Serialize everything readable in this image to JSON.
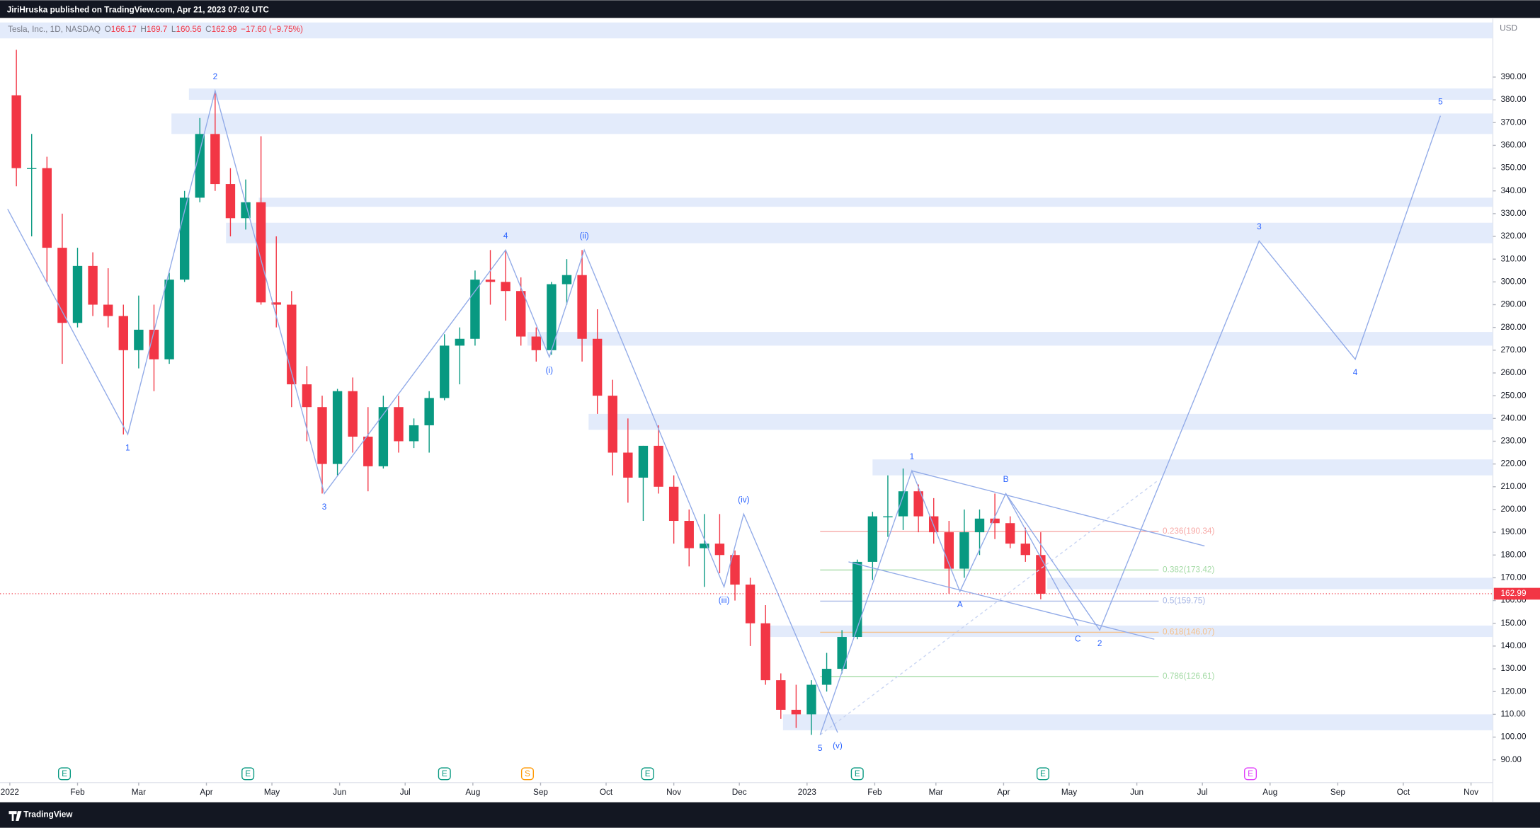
{
  "header": {
    "publisher": "JiriHruska published on TradingView.com, Apr 21, 2023 07:02 UTC"
  },
  "footer": {
    "brand": "TradingView"
  },
  "chart_data": {
    "type": "candlestick",
    "title": "Tesla, Inc., 1D, NASDAQ",
    "ohlc_legend": [
      {
        "key": "O",
        "value": 166.17
      },
      {
        "key": "H",
        "value": 169.7
      },
      {
        "key": "L",
        "value": 160.56
      },
      {
        "key": "C",
        "value": 162.99
      }
    ],
    "change": "−17.60 (−9.75%)",
    "currency": "USD",
    "up_color": "#089981",
    "down_color": "#f23645",
    "x": [
      3,
      10,
      17,
      24,
      31,
      38,
      45,
      52,
      59,
      66,
      73,
      80,
      87,
      94,
      101,
      108,
      115,
      122,
      129,
      136,
      143,
      150,
      157,
      164,
      171,
      178,
      185,
      192,
      199,
      206,
      213,
      220,
      227,
      234,
      241,
      248,
      255,
      262,
      269,
      276,
      283,
      290,
      297,
      304,
      311,
      318,
      325,
      332,
      339,
      346,
      353,
      360,
      367,
      374,
      381,
      388,
      395,
      402,
      409,
      416,
      423,
      430,
      437,
      444,
      451,
      458,
      465,
      472
    ],
    "open": [
      382,
      350,
      350,
      315,
      282,
      307,
      290,
      285,
      270,
      279,
      266,
      301,
      337,
      365,
      343,
      328,
      335,
      291,
      290,
      255,
      245,
      220,
      252,
      232,
      219,
      245,
      230,
      237,
      249,
      272,
      275,
      301,
      300,
      296,
      276,
      270,
      299,
      303,
      275,
      250,
      225,
      214,
      228,
      210,
      195,
      183,
      185,
      180,
      167,
      150,
      125,
      112,
      110,
      123,
      130,
      144,
      177,
      197,
      197,
      208,
      197,
      190,
      174,
      190,
      196,
      194,
      185,
      180
    ],
    "high": [
      402,
      365,
      355,
      330,
      315,
      313,
      306,
      290,
      294,
      290,
      304,
      340,
      372,
      384,
      350,
      345,
      364,
      320,
      296,
      263,
      250,
      253,
      258,
      245,
      250,
      250,
      240,
      252,
      277,
      280,
      305,
      314,
      314,
      302,
      280,
      300,
      310,
      314,
      288,
      257,
      240,
      228,
      237,
      215,
      200,
      198,
      198,
      182,
      170,
      158,
      128,
      123,
      125,
      137,
      147,
      178,
      199,
      215,
      218,
      211,
      205,
      195,
      200,
      200,
      207,
      197,
      192,
      190
    ],
    "low": [
      342,
      320,
      300,
      264,
      280,
      285,
      280,
      233,
      262,
      252,
      264,
      300,
      335,
      340,
      320,
      323,
      290,
      280,
      245,
      230,
      207,
      215,
      225,
      208,
      218,
      225,
      227,
      225,
      248,
      255,
      272,
      290,
      283,
      272,
      265,
      268,
      290,
      265,
      242,
      215,
      203,
      195,
      207,
      185,
      175,
      166,
      172,
      160,
      140,
      123,
      108,
      104,
      101,
      120,
      128,
      143,
      169,
      188,
      191,
      190,
      185,
      163,
      170,
      180,
      187,
      183,
      177,
      160.56
    ],
    "close": [
      350,
      350,
      315,
      282,
      307,
      290,
      285,
      270,
      279,
      266,
      301,
      337,
      365,
      343,
      328,
      335,
      291,
      290,
      255,
      245,
      220,
      252,
      232,
      219,
      245,
      230,
      237,
      249,
      272,
      275,
      301,
      300,
      296,
      276,
      270,
      299,
      303,
      275,
      250,
      225,
      214,
      228,
      210,
      195,
      183,
      185,
      180,
      167,
      150,
      125,
      112,
      110,
      123,
      130,
      144,
      177,
      197,
      197,
      208,
      197,
      190,
      174,
      190,
      196,
      194,
      185,
      180,
      162.99
    ],
    "xlim": [
      -4.5,
      679
    ],
    "xticks": [
      {
        "value": 0,
        "label": "2022"
      },
      {
        "value": 31,
        "label": "Feb"
      },
      {
        "value": 59,
        "label": "Mar"
      },
      {
        "value": 90,
        "label": "Apr"
      },
      {
        "value": 120,
        "label": "May"
      },
      {
        "value": 151,
        "label": "Jun"
      },
      {
        "value": 181,
        "label": "Jul"
      },
      {
        "value": 212,
        "label": "Aug"
      },
      {
        "value": 243,
        "label": "Sep"
      },
      {
        "value": 273,
        "label": "Oct"
      },
      {
        "value": 304,
        "label": "Nov"
      },
      {
        "value": 334,
        "label": "Dec"
      },
      {
        "value": 365,
        "label": "2023"
      },
      {
        "value": 396,
        "label": "Feb"
      },
      {
        "value": 424,
        "label": "Mar"
      },
      {
        "value": 455,
        "label": "Apr"
      },
      {
        "value": 485,
        "label": "May"
      },
      {
        "value": 516,
        "label": "Jun"
      },
      {
        "value": 546,
        "label": "Jul"
      },
      {
        "value": 577,
        "label": "Aug"
      },
      {
        "value": 608,
        "label": "Sep"
      },
      {
        "value": 638,
        "label": "Oct"
      },
      {
        "value": 669,
        "label": "Nov"
      }
    ],
    "ylim": [
      80,
      416
    ],
    "yticks": [
      {
        "value": 390,
        "label": "390.00"
      },
      {
        "value": 380,
        "label": "380.00"
      },
      {
        "value": 370,
        "label": "370.00"
      },
      {
        "value": 360,
        "label": "360.00"
      },
      {
        "value": 350,
        "label": "350.00"
      },
      {
        "value": 340,
        "label": "340.00"
      },
      {
        "value": 330,
        "label": "330.00"
      },
      {
        "value": 320,
        "label": "320.00"
      },
      {
        "value": 310,
        "label": "310.00"
      },
      {
        "value": 300,
        "label": "300.00"
      },
      {
        "value": 290,
        "label": "290.00"
      },
      {
        "value": 280,
        "label": "280.00"
      },
      {
        "value": 270,
        "label": "270.00"
      },
      {
        "value": 260,
        "label": "260.00"
      },
      {
        "value": 250,
        "label": "250.00"
      },
      {
        "value": 240,
        "label": "240.00"
      },
      {
        "value": 230,
        "label": "230.00"
      },
      {
        "value": 220,
        "label": "220.00"
      },
      {
        "value": 210,
        "label": "210.00"
      },
      {
        "value": 200,
        "label": "200.00"
      },
      {
        "value": 190,
        "label": "190.00"
      },
      {
        "value": 180,
        "label": "180.00"
      },
      {
        "value": 170,
        "label": "170.00"
      },
      {
        "value": 160,
        "label": "160.00"
      },
      {
        "value": 150,
        "label": "150.00"
      },
      {
        "value": 140,
        "label": "140.00"
      },
      {
        "value": 130,
        "label": "130.00"
      },
      {
        "value": 120,
        "label": "120.00"
      },
      {
        "value": 110,
        "label": "110.00"
      },
      {
        "value": 100,
        "label": "100.00"
      },
      {
        "value": 90,
        "label": "90.00"
      }
    ],
    "last_price": 162.99,
    "zone_color": "#e3ebfb",
    "zones": [
      {
        "x": -4.5,
        "low": 407,
        "high": 414
      },
      {
        "x": 82,
        "low": 380,
        "high": 385
      },
      {
        "x": 74,
        "low": 365,
        "high": 374
      },
      {
        "x": 114,
        "low": 333,
        "high": 337
      },
      {
        "x": 99,
        "low": 317,
        "high": 326
      },
      {
        "x": 237,
        "low": 272,
        "high": 278
      },
      {
        "x": 265,
        "low": 235,
        "high": 242
      },
      {
        "x": 395,
        "low": 215,
        "high": 222
      },
      {
        "x": 475,
        "low": 165,
        "high": 170
      },
      {
        "x": 345,
        "low": 144,
        "high": 149
      },
      {
        "x": 354,
        "low": 103,
        "high": 110
      }
    ],
    "wave_color": "#92abe8",
    "label_color": "#2962ff",
    "waves": [
      {
        "points": [
          {
            "x": -1,
            "y": 332
          },
          {
            "x": 54,
            "y": 233,
            "label": "1"
          },
          {
            "x": 94,
            "y": 384,
            "label": "2"
          },
          {
            "x": 144,
            "y": 207,
            "label": "3"
          },
          {
            "x": 227,
            "y": 314,
            "label": "4"
          },
          {
            "x": 247,
            "y": 267,
            "label": "(i)"
          },
          {
            "x": 263,
            "y": 314,
            "label": "(ii)"
          },
          {
            "x": 327,
            "y": 166,
            "label": "(iii)"
          },
          {
            "x": 336,
            "y": 198,
            "label": "(iv)"
          },
          {
            "x": 379,
            "y": 102,
            "label": "(v)"
          }
        ]
      },
      {
        "points": [
          {
            "x": 371,
            "y": 101,
            "label": "5"
          },
          {
            "x": 413,
            "y": 217,
            "label": "1"
          },
          {
            "x": 435,
            "y": 164,
            "label": "A"
          },
          {
            "x": 456,
            "y": 207,
            "label": "B"
          },
          {
            "x": 489,
            "y": 149,
            "label": "C"
          }
        ]
      },
      {
        "points": [
          {
            "x": 456,
            "y": 207
          },
          {
            "x": 499,
            "y": 147,
            "label": "2"
          },
          {
            "x": 572,
            "y": 318,
            "label": "3"
          },
          {
            "x": 616,
            "y": 266,
            "label": "4"
          },
          {
            "x": 655,
            "y": 373,
            "label": "5"
          }
        ]
      }
    ],
    "trendlines": [
      {
        "x": [
          413,
          547
        ],
        "y": [
          217,
          184
        ],
        "dashed": false
      },
      {
        "x": [
          384,
          524
        ],
        "y": [
          177,
          143
        ],
        "dashed": false
      },
      {
        "x": [
          371,
          526
        ],
        "y": [
          101,
          213
        ],
        "dashed": true
      }
    ],
    "fib": {
      "x": [
        371,
        526
      ],
      "levels": [
        {
          "value": 190.34,
          "label": "0.236(190.34)",
          "color": "#f7a9a6"
        },
        {
          "value": 173.42,
          "label": "0.382(173.42)",
          "color": "#a5dba6"
        },
        {
          "value": 159.75,
          "label": "0.5(159.75)",
          "color": "#a9b8e6"
        },
        {
          "value": 146.07,
          "label": "0.618(146.07)",
          "color": "#f5c08a"
        },
        {
          "value": 126.61,
          "label": "0.786(126.61)",
          "color": "#a5dba6"
        }
      ]
    },
    "events": [
      {
        "x": 25,
        "label": "E",
        "color": "#089981"
      },
      {
        "x": 109,
        "label": "E",
        "color": "#089981"
      },
      {
        "x": 199,
        "label": "E",
        "color": "#089981"
      },
      {
        "x": 237,
        "label": "S",
        "color": "#ff9800"
      },
      {
        "x": 292,
        "label": "E",
        "color": "#089981"
      },
      {
        "x": 388,
        "label": "E",
        "color": "#089981"
      },
      {
        "x": 473,
        "label": "E",
        "color": "#089981"
      },
      {
        "x": 568,
        "label": "E",
        "color": "#e040fb"
      }
    ]
  }
}
